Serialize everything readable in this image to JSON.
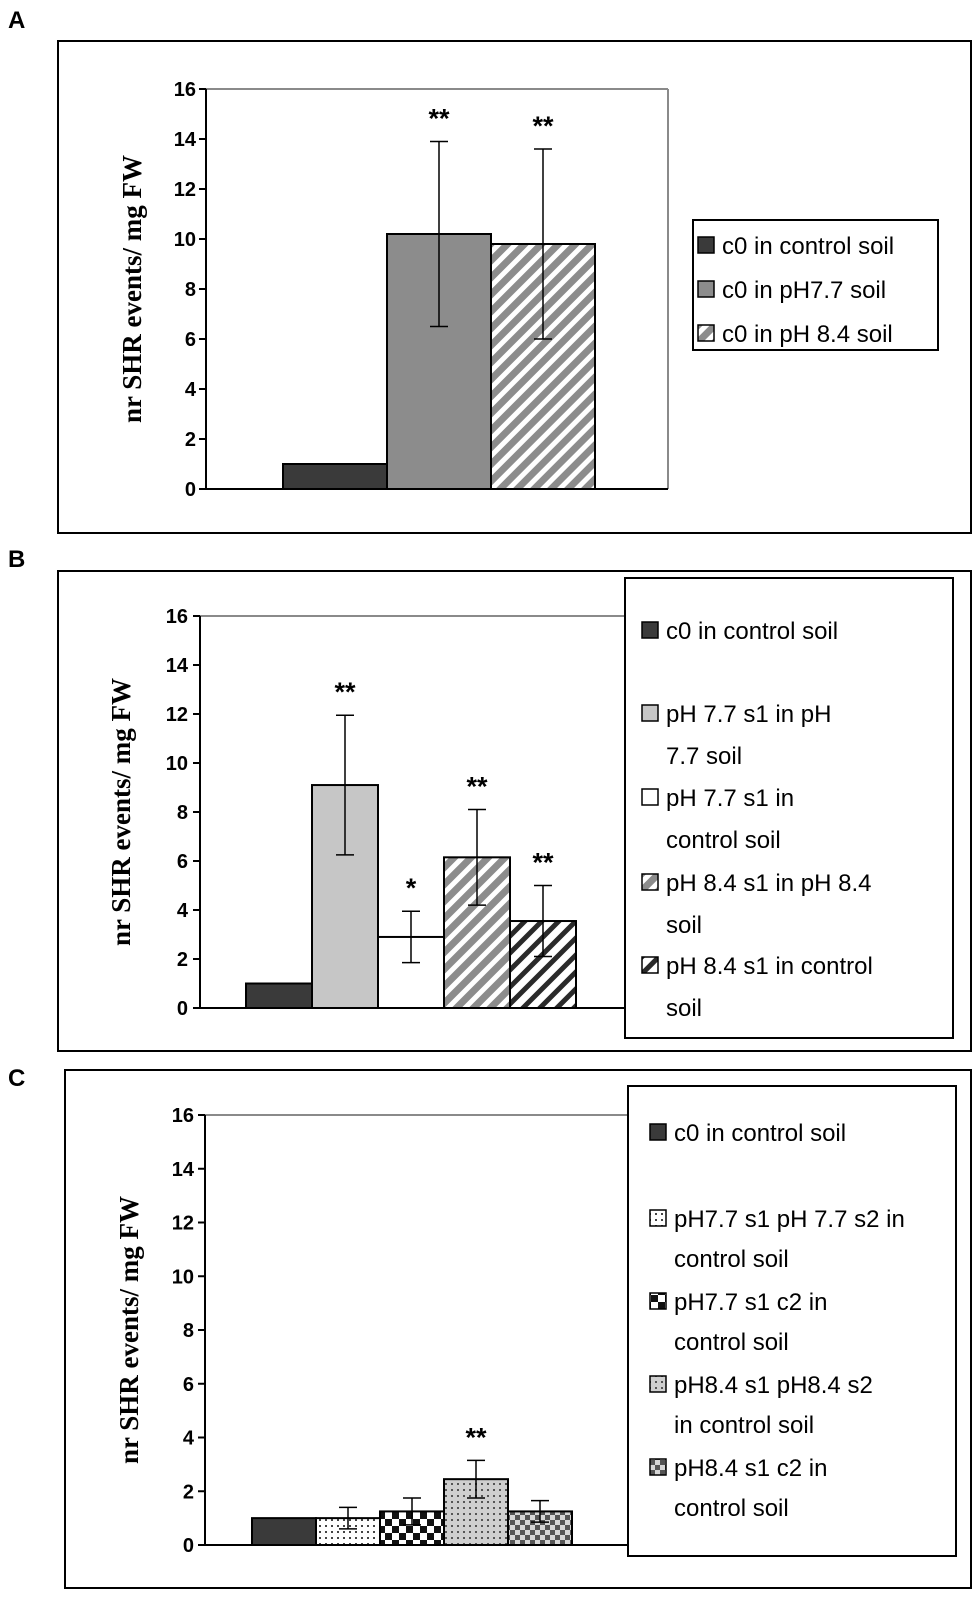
{
  "colors": {
    "dark": "#3a3a3a",
    "gray": "#8c8c8c",
    "lightgray": "#c6c6c6",
    "white": "#ffffff",
    "line": "#000000"
  },
  "chart_data": [
    {
      "panel": "A",
      "type": "bar",
      "ylabel": "nr SHR events/ mg FW",
      "ylim": [
        0,
        16
      ],
      "yticks": [
        "0",
        "2",
        "4",
        "6",
        "8",
        "10",
        "12",
        "14",
        "16"
      ],
      "series": [
        {
          "name": "c0 in control soil",
          "value": 1.0,
          "error": 0,
          "sig": "",
          "pattern": "solid-dark"
        },
        {
          "name": "c0 in  pH7.7 soil",
          "value": 10.2,
          "error": 3.7,
          "sig": "**",
          "pattern": "solid-gray"
        },
        {
          "name": "c0 in pH 8.4 soil",
          "value": 9.8,
          "error": 3.8,
          "sig": "**",
          "pattern": "hatch-gray"
        }
      ],
      "legend": [
        {
          "lines": [
            "c0 in control soil"
          ]
        },
        {
          "lines": [
            "c0 in  pH7.7 soil"
          ]
        },
        {
          "lines": [
            "c0 in pH 8.4 soil"
          ]
        }
      ]
    },
    {
      "panel": "B",
      "type": "bar",
      "ylabel": "nr SHR events/ mg FW",
      "ylim": [
        0,
        16
      ],
      "yticks": [
        "0",
        "2",
        "4",
        "6",
        "8",
        "10",
        "12",
        "14",
        "16"
      ],
      "series": [
        {
          "name": "c0 in control soil",
          "value": 1.0,
          "error": 0,
          "sig": "",
          "pattern": "solid-dark"
        },
        {
          "name": "pH 7.7 s1  in pH 7.7 soil",
          "value": 9.1,
          "error": 2.85,
          "sig": "**",
          "pattern": "solid-lightgray"
        },
        {
          "name": "pH 7.7 s1  in control soil",
          "value": 2.9,
          "error": 1.05,
          "sig": "*",
          "pattern": "solid-white"
        },
        {
          "name": "pH 8.4 s1 in pH 8.4 soil",
          "value": 6.15,
          "error": 1.95,
          "sig": "**",
          "pattern": "hatch-gray"
        },
        {
          "name": "pH 8.4 s1 in control soil",
          "value": 3.55,
          "error": 1.45,
          "sig": "**",
          "pattern": "hatch-white"
        }
      ],
      "legend": [
        {
          "lines": [
            "c0 in control soil"
          ]
        },
        {
          "lines": [
            "pH 7.7 s1  in pH",
            "7.7 soil"
          ]
        },
        {
          "lines": [
            "pH 7.7 s1  in",
            "control soil"
          ]
        },
        {
          "lines": [
            "pH 8.4 s1 in pH 8.4",
            "soil"
          ]
        },
        {
          "lines": [
            "pH 8.4 s1 in control",
            "soil"
          ]
        }
      ]
    },
    {
      "panel": "C",
      "type": "bar",
      "ylabel": "nr SHR events/ mg FW",
      "ylim": [
        0,
        16
      ],
      "yticks": [
        "0",
        "2",
        "4",
        "6",
        "8",
        "10",
        "12",
        "14",
        "16"
      ],
      "series": [
        {
          "name": "c0 in control soil",
          "value": 1.0,
          "error": 0,
          "sig": "",
          "pattern": "solid-dark"
        },
        {
          "name": "pH7.7 s1 pH 7.7 s2 in control soil",
          "value": 1.0,
          "error": 0.4,
          "sig": "",
          "pattern": "dots"
        },
        {
          "name": "pH7.7 s1 c2 in control soil",
          "value": 1.25,
          "error": 0.5,
          "sig": "",
          "pattern": "checker"
        },
        {
          "name": "pH8.4 s1 pH8.4  s2 in control soil",
          "value": 2.45,
          "error": 0.7,
          "sig": "**",
          "pattern": "dots-gray"
        },
        {
          "name": "pH8.4 s1 c2 in control soil",
          "value": 1.25,
          "error": 0.4,
          "sig": "",
          "pattern": "checker-gray"
        }
      ],
      "legend": [
        {
          "lines": [
            "c0 in control soil"
          ]
        },
        {
          "lines": [
            "pH7.7 s1 pH 7.7 s2 in",
            "control soil"
          ]
        },
        {
          "lines": [
            "pH7.7 s1 c2 in",
            "control soil"
          ]
        },
        {
          "lines": [
            "pH8.4 s1 pH8.4  s2",
            "in control soil"
          ]
        },
        {
          "lines": [
            "pH8.4 s1 c2 in",
            "control soil"
          ]
        }
      ]
    }
  ]
}
